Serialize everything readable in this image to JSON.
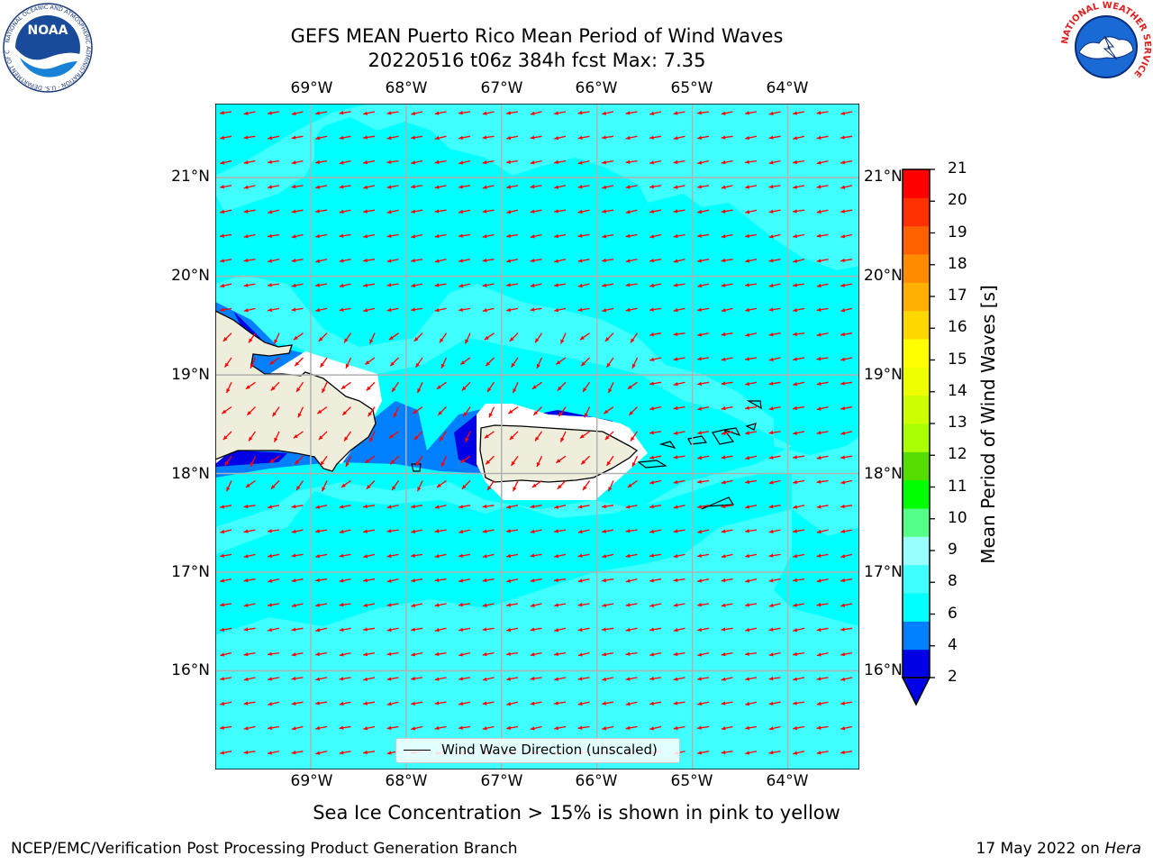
{
  "header": {
    "title_line1": "GEFS MEAN Puerto Rico Mean Period of Wind Waves",
    "title_line2": "20220516 t06z 384h fcst   Max: 7.35"
  },
  "logos": {
    "left": {
      "icon": "noaa-logo-icon",
      "text": "NOAA",
      "ring_text": "NATIONAL OCEANIC AND ATMOSPHERIC ADMINISTRATION · U.S. DEPARTMENT OF COMMERCE"
    },
    "right": {
      "icon": "nws-logo-icon",
      "ring_text": "NATIONAL WEATHER SERVICE"
    }
  },
  "map": {
    "lon_labels": [
      "69°W",
      "68°W",
      "67°W",
      "66°W",
      "65°W",
      "64°W"
    ],
    "lat_labels": [
      "21°N",
      "20°N",
      "19°N",
      "18°N",
      "17°N",
      "16°N"
    ],
    "lon_range": [
      -70.0,
      -63.25
    ],
    "lat_range": [
      15.0,
      21.75
    ],
    "arrow_color": "#ff0000",
    "land_color": "#efeedc",
    "legend": "Wind Wave Direction (unscaled)"
  },
  "colorbar": {
    "label": "Mean Period of Wind Waves [s]",
    "ticks": [
      "21",
      "20",
      "19",
      "18",
      "17",
      "16",
      "15",
      "14",
      "13",
      "12",
      "11",
      "10",
      "9",
      "8",
      "6",
      "4",
      "2"
    ],
    "colors": [
      "#0000e6",
      "#0080ff",
      "#00ffff",
      "#40ffff",
      "#99ffff",
      "#55ff88",
      "#00ff00",
      "#55dd00",
      "#aaff00",
      "#ccff00",
      "#eeff00",
      "#ffff00",
      "#ffd700",
      "#ffb000",
      "#ff8c00",
      "#ff6000",
      "#ff3000",
      "#ff0000"
    ]
  },
  "footer": {
    "subtitle": "Sea Ice Concentration > 15% is shown in pink to yellow",
    "left": "NCEP/EMC/Verification Post Processing Product Generation Branch",
    "right_prefix": "17 May 2022 on ",
    "right_host": "Hera"
  }
}
